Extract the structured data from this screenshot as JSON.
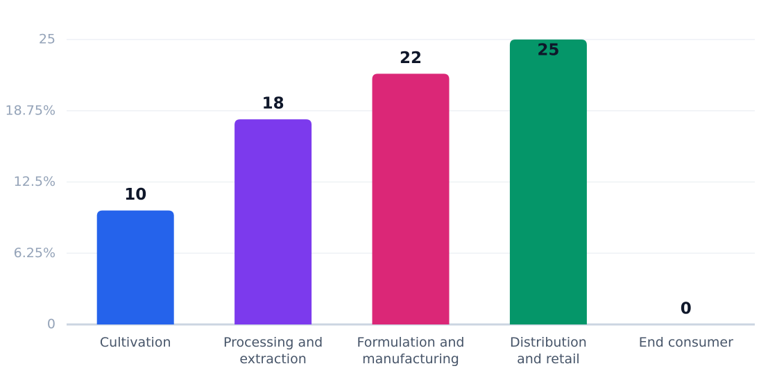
{
  "chart_data": {
    "type": "bar",
    "categories": [
      "Cultivation",
      "Processing and\nextraction",
      "Formulation and\nmanufacturing",
      "Distribution\nand retail",
      "End consumer"
    ],
    "values": [
      10,
      18,
      22,
      25,
      0
    ],
    "colors": [
      "#2563eb",
      "#7c3aed",
      "#db2777",
      "#059669",
      "#0891b2"
    ],
    "ylim": [
      0,
      25
    ],
    "yticks": [
      0,
      {
        "value": 6.25,
        "label": "6.25%"
      },
      {
        "value": 12.5,
        "label": "12.5%"
      },
      {
        "value": 18.75,
        "label": "18.75%"
      },
      25
    ],
    "grid": true
  }
}
